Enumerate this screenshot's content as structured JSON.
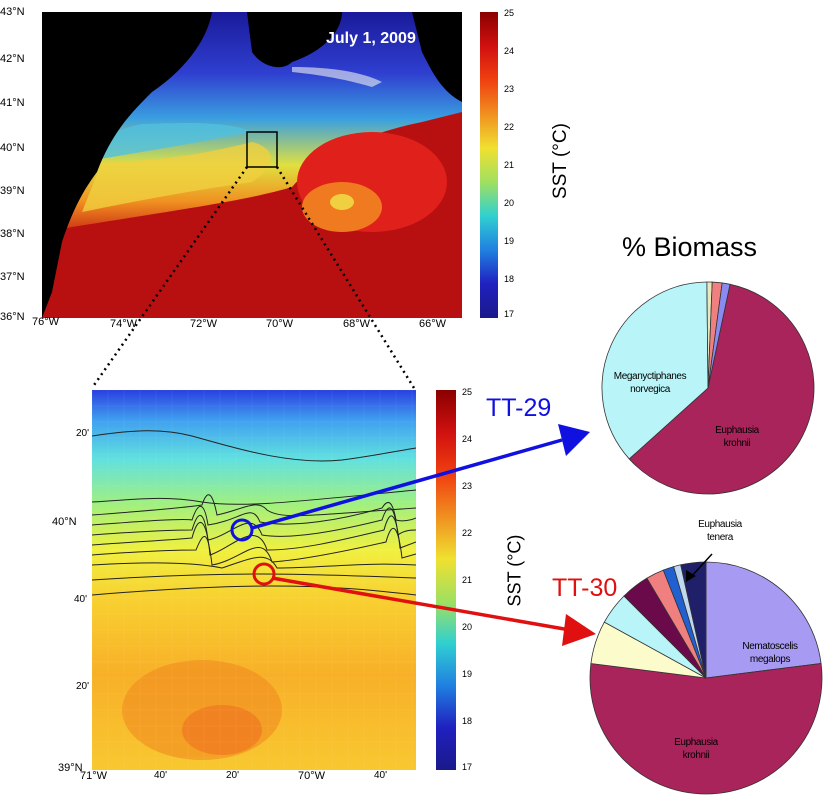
{
  "top_map": {
    "date": "July 1, 2009",
    "lat_ticks": [
      "43°N",
      "42°N",
      "41°N",
      "40°N",
      "39°N",
      "38°N",
      "37°N",
      "36°N"
    ],
    "lon_ticks": [
      "76°W",
      "74°W",
      "72°W",
      "70°W",
      "68°W",
      "66°W"
    ],
    "colorbar_ticks": [
      "25",
      "24",
      "23",
      "22",
      "21",
      "20",
      "19",
      "18",
      "17"
    ],
    "colorbar_label": "SST (°C)",
    "colorbar_range": [
      17,
      25
    ]
  },
  "zoom_map": {
    "lat_ticks": [
      "20'",
      "40°N",
      "40'",
      "20'",
      "39°N"
    ],
    "lon_ticks": [
      "71°W",
      "40'",
      "20'",
      "70°W",
      "40'"
    ],
    "colorbar_ticks": [
      "25",
      "24",
      "23",
      "22",
      "21",
      "20",
      "19",
      "18",
      "17"
    ],
    "colorbar_label": "SST (°C)",
    "stations": [
      {
        "id": "TT-29",
        "color": "#1010e0"
      },
      {
        "id": "TT-30",
        "color": "#e01010"
      }
    ]
  },
  "biomass": {
    "title": "% Biomass",
    "tt29": [
      {
        "label": "Euphausia krohnii",
        "line1": "Euphausia",
        "line2": "krohnii",
        "percent": 60,
        "color": "#a8245a"
      },
      {
        "label": "Meganyctiphanes norvegica",
        "line1": "Meganyctiphanes",
        "line2": "norvegica",
        "percent": 36.5,
        "color": "#b8f4f8"
      },
      {
        "label": "",
        "percent": 0.8,
        "color": "#e8e8c0"
      },
      {
        "label": "",
        "percent": 1.5,
        "color": "#f08080"
      },
      {
        "label": "",
        "percent": 1.2,
        "color": "#8a8af0"
      }
    ],
    "tt30": [
      {
        "label": "Nematoscelis megalops",
        "line1": "Nematoscelis",
        "line2": "megalops",
        "percent": 23,
        "color": "#a79af2"
      },
      {
        "label": "Euphausia krohnii",
        "line1": "Euphausia",
        "line2": "krohnii",
        "percent": 54,
        "color": "#a8245a"
      },
      {
        "label": "",
        "percent": 6,
        "color": "#fbfbcc"
      },
      {
        "label": "",
        "percent": 4.5,
        "color": "#b8f4f8"
      },
      {
        "label": "",
        "percent": 4,
        "color": "#6a0a4a"
      },
      {
        "label": "",
        "percent": 2.5,
        "color": "#f08080"
      },
      {
        "label": "Euphausia tenera",
        "percent": 1.5,
        "color": "#2060d0"
      },
      {
        "label": "",
        "percent": 1,
        "color": "#c0d8f0"
      },
      {
        "label": "",
        "percent": 3.5,
        "color": "#20206a"
      }
    ],
    "tenera_line1": "Euphausia",
    "tenera_line2": "tenera"
  }
}
